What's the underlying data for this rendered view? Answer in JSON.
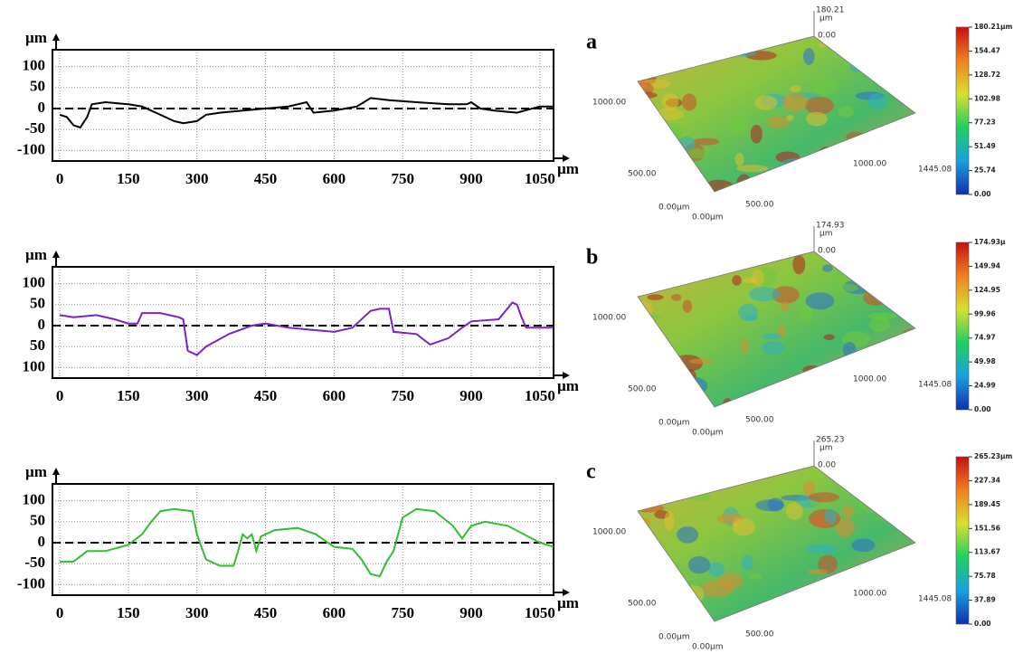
{
  "chart_data": [
    {
      "type": "line",
      "x_unit": "µm",
      "y_unit": "µm",
      "xlim": [
        -16,
        1080
      ],
      "ylim": [
        -125,
        140
      ],
      "grid": true,
      "hline": 0,
      "color": "#000000",
      "xticks": [
        0,
        150,
        300,
        450,
        600,
        750,
        900,
        1050
      ],
      "yticks": [
        100,
        50,
        0,
        -50,
        -100
      ],
      "x": [
        0,
        15,
        30,
        45,
        60,
        70,
        100,
        150,
        180,
        200,
        220,
        250,
        270,
        300,
        320,
        350,
        400,
        450,
        500,
        540,
        555,
        600,
        650,
        680,
        720,
        780,
        850,
        890,
        900,
        920,
        950,
        1000,
        1050,
        1080
      ],
      "values": [
        -15,
        -20,
        -40,
        -45,
        -20,
        10,
        15,
        10,
        5,
        -5,
        -15,
        -30,
        -35,
        -30,
        -15,
        -10,
        -5,
        0,
        5,
        15,
        -10,
        -5,
        5,
        25,
        20,
        15,
        10,
        10,
        15,
        0,
        -5,
        -10,
        5,
        5
      ]
    },
    {
      "type": "line",
      "x_unit": "µm",
      "y_unit": "µm",
      "xlim": [
        -16,
        1080
      ],
      "ylim": [
        -125,
        140
      ],
      "grid": true,
      "hline": 0,
      "color": "#7b22c9",
      "xticks": [
        0,
        150,
        300,
        450,
        600,
        750,
        900,
        1050
      ],
      "yticks": [
        100,
        50,
        0,
        {
          "value": -50,
          "label": "50"
        },
        {
          "value": -100,
          "label": "100"
        }
      ],
      "x": [
        0,
        30,
        80,
        120,
        150,
        170,
        180,
        220,
        260,
        270,
        280,
        300,
        320,
        370,
        420,
        450,
        500,
        550,
        600,
        640,
        680,
        700,
        720,
        730,
        780,
        810,
        850,
        880,
        900,
        960,
        990,
        1000,
        1010,
        1020,
        1080
      ],
      "values": [
        25,
        20,
        25,
        15,
        5,
        5,
        30,
        30,
        20,
        15,
        -60,
        -70,
        -50,
        -20,
        0,
        5,
        -5,
        -10,
        -15,
        -5,
        35,
        40,
        40,
        -15,
        -20,
        -45,
        -30,
        -5,
        10,
        15,
        55,
        50,
        20,
        -5,
        -5
      ]
    },
    {
      "type": "line",
      "x_unit": "µm",
      "y_unit": "µm",
      "xlim": [
        -16,
        1080
      ],
      "ylim": [
        -125,
        140
      ],
      "grid": true,
      "hline": 0,
      "color": "#2fbf2f",
      "xticks": [
        0,
        150,
        300,
        450,
        600,
        750,
        900,
        1050
      ],
      "yticks": [
        100,
        50,
        0,
        -50,
        -100
      ],
      "x": [
        0,
        30,
        60,
        100,
        150,
        180,
        200,
        220,
        250,
        290,
        300,
        320,
        350,
        380,
        390,
        400,
        410,
        420,
        430,
        440,
        470,
        520,
        560,
        580,
        600,
        640,
        660,
        680,
        700,
        715,
        730,
        750,
        780,
        820,
        860,
        880,
        900,
        930,
        980,
        1050,
        1080
      ],
      "values": [
        -45,
        -45,
        -20,
        -20,
        -5,
        20,
        50,
        75,
        80,
        75,
        20,
        -40,
        -55,
        -55,
        -20,
        20,
        10,
        20,
        -20,
        15,
        30,
        35,
        20,
        5,
        -10,
        -15,
        -40,
        -75,
        -80,
        -45,
        -20,
        60,
        80,
        75,
        40,
        10,
        40,
        50,
        40,
        0,
        -10
      ]
    },
    {
      "type": "surface",
      "label": "a",
      "z_top": "180.21",
      "z_unit": "µm",
      "z_zero": "0.00",
      "axis_texts": [
        "1000.00",
        "500.00",
        "0.00µm",
        "0.00µm",
        "500.00",
        "1000.00",
        "1445.08"
      ],
      "colorbar_ticks": [
        {
          "value": 180.21,
          "label": "180.21µm"
        },
        154.47,
        128.72,
        102.98,
        77.23,
        51.49,
        25.74,
        {
          "value": 0,
          "label": "0.00"
        }
      ]
    },
    {
      "type": "surface",
      "label": "b",
      "z_top": "174.93",
      "z_unit": "µm",
      "z_zero": "0.00",
      "axis_texts": [
        "1000.00",
        "500.00",
        "0.00µm",
        "0.00µm",
        "500.00",
        "1000.00",
        "1445.08"
      ],
      "colorbar_ticks": [
        {
          "value": 174.93,
          "label": "174.93µ"
        },
        149.94,
        124.95,
        99.96,
        74.97,
        49.98,
        24.99,
        {
          "value": 0,
          "label": "0.00"
        }
      ]
    },
    {
      "type": "surface",
      "label": "c",
      "z_top": "265.23",
      "z_unit": "µm",
      "z_zero": "0.00",
      "axis_texts": [
        "1000.00",
        "500.00",
        "0.00µm",
        "0.00µm",
        "500.00",
        "1000.00",
        "1445.08"
      ],
      "colorbar_ticks": [
        {
          "value": 265.23,
          "label": "265.23µm"
        },
        227.34,
        189.45,
        151.56,
        113.67,
        75.78,
        37.89,
        {
          "value": 0,
          "label": "0.00"
        }
      ]
    }
  ]
}
